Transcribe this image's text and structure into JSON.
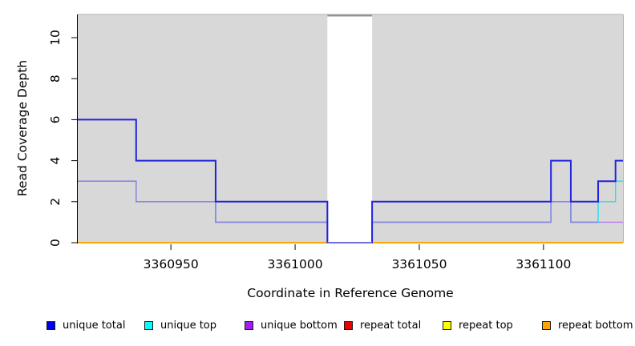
{
  "figure": {
    "background": "#ffffff"
  },
  "chart_data": {
    "type": "line",
    "subtype": "step",
    "title": "",
    "xlabel": "Coordinate in Reference Genome",
    "ylabel": "Read Coverage Depth",
    "x_range": [
      3360912.5,
      3361132
    ],
    "y_range": [
      0,
      11.1
    ],
    "x_ticks": [
      3360950,
      3361000,
      3361050,
      3361100
    ],
    "y_ticks": [
      0,
      2,
      4,
      6,
      8,
      10
    ],
    "grid": "off",
    "plot_bg": "#d8d8d8",
    "gap_region": {
      "x_start": 3361013,
      "x_end": 3361031
    },
    "series": [
      {
        "name": "repeat total",
        "color": "#e00000",
        "width": 1.4,
        "steps": [
          [
            3360912.5,
            0
          ],
          [
            3361132,
            0
          ]
        ]
      },
      {
        "name": "repeat top",
        "color": "#ffff00",
        "width": 1.4,
        "steps": [
          [
            3360912.5,
            0
          ],
          [
            3361132,
            0
          ]
        ]
      },
      {
        "name": "repeat bottom",
        "color": "#ffa500",
        "width": 1.8,
        "steps": [
          [
            3360912.5,
            0
          ],
          [
            3361132,
            0
          ]
        ]
      },
      {
        "name": "unique bottom",
        "color": "#bb77ee",
        "width": 1.4,
        "steps": [
          [
            3360912.5,
            3
          ],
          [
            3360936,
            2
          ],
          [
            3360968,
            1
          ],
          [
            3361013,
            0
          ],
          [
            3361031,
            1
          ],
          [
            3361103,
            2
          ],
          [
            3361111,
            1
          ],
          [
            3361132,
            1
          ]
        ]
      },
      {
        "name": "unique top",
        "color": "#22dff0",
        "width": 1.4,
        "steps": [
          [
            3360912.5,
            3
          ],
          [
            3360936,
            2
          ],
          [
            3360968,
            1
          ],
          [
            3361013,
            0
          ],
          [
            3361031,
            1
          ],
          [
            3361103,
            2
          ],
          [
            3361111,
            1
          ],
          [
            3361122,
            2
          ],
          [
            3361129,
            3
          ],
          [
            3361132,
            3
          ]
        ]
      },
      {
        "name": "unique top+bottom overlap",
        "color": "#8888dd",
        "width": 1.6,
        "steps": [
          [
            3360912.5,
            3
          ],
          [
            3360936,
            2
          ],
          [
            3360968,
            1
          ],
          [
            3361013,
            0
          ],
          [
            3361031,
            1
          ],
          [
            3361103,
            2
          ],
          [
            3361111,
            1
          ],
          [
            3361122,
            1
          ]
        ]
      },
      {
        "name": "unique total",
        "color": "#2222dd",
        "width": 2,
        "steps": [
          [
            3360912.5,
            6
          ],
          [
            3360936,
            4
          ],
          [
            3360968,
            2
          ],
          [
            3361013,
            0
          ],
          [
            3361031,
            2
          ],
          [
            3361103,
            4
          ],
          [
            3361111,
            2
          ],
          [
            3361122,
            3
          ],
          [
            3361129,
            4
          ],
          [
            3361132,
            4
          ]
        ]
      },
      {
        "name": "gap zero line",
        "color": "#8888dd",
        "width": 1.6,
        "steps": [
          [
            3361013,
            0
          ],
          [
            3361031,
            0
          ]
        ]
      }
    ]
  },
  "legend": {
    "items": [
      {
        "label": "unique total",
        "color": "#0000ee"
      },
      {
        "label": "unique top",
        "color": "#00ffff"
      },
      {
        "label": "unique bottom",
        "color": "#a020f0"
      },
      {
        "label": "repeat total",
        "color": "#ee0000"
      },
      {
        "label": "repeat top",
        "color": "#ffff00"
      },
      {
        "label": "repeat bottom",
        "color": "#ffa500"
      }
    ]
  }
}
